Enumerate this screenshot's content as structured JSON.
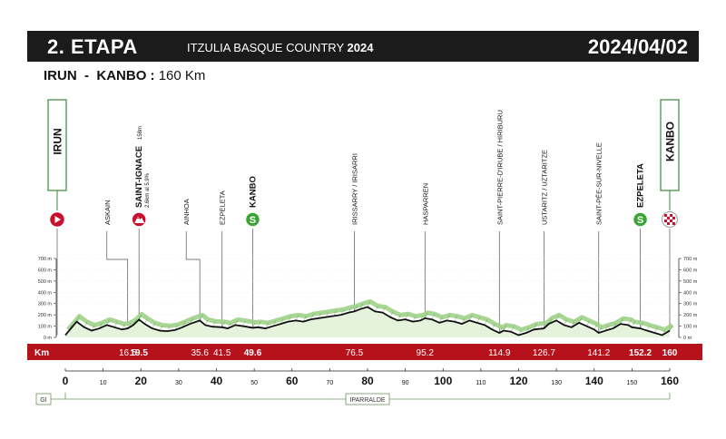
{
  "header": {
    "stage": "2. ETAPA",
    "race": "ITZULIA BASQUE COUNTRY",
    "year": "2024",
    "date": "2024/04/02"
  },
  "route": {
    "start": "IRUN",
    "separator": "-",
    "finish": "KANBO",
    "distance": "160 Km"
  },
  "endpoints": {
    "start": {
      "name": "IRUN",
      "km": 0,
      "icon": "start-play-icon"
    },
    "finish": {
      "name": "KANBO",
      "km": 160,
      "icon": "finish-checkered-icon"
    }
  },
  "waypoints": [
    {
      "km": 11,
      "name": "ASKAIN",
      "bold": false,
      "icon": null
    },
    {
      "km": 19.5,
      "name": "SAINT-IGNACE",
      "suffix": "158m",
      "sub": "2.6km al 5.9%",
      "bold": true,
      "icon": "climb-icon"
    },
    {
      "km": 32,
      "name": "AINHOA",
      "bold": false,
      "icon": null
    },
    {
      "km": 41.5,
      "name": "EZPELETA",
      "bold": false,
      "icon": null
    },
    {
      "km": 49.6,
      "name": "KANBO",
      "bold": true,
      "icon": "sprint-icon"
    },
    {
      "km": 76.5,
      "name": "IRISSARRY / IRISARRI",
      "bold": false,
      "icon": null
    },
    {
      "km": 95.2,
      "name": "HASPARREN",
      "bold": false,
      "icon": null
    },
    {
      "km": 114.9,
      "name": "SAINT-PIERRE-D'IRUBE / HIRIBURU",
      "bold": false,
      "icon": null
    },
    {
      "km": 126.7,
      "name": "USTARITZ / UZTARITZE",
      "bold": false,
      "icon": null
    },
    {
      "km": 141.2,
      "name": "SAINT-PÉE-SUR-NIVELLE",
      "bold": false,
      "icon": null
    },
    {
      "km": 152.2,
      "name": "EZPELETA",
      "bold": true,
      "icon": "sprint-icon"
    }
  ],
  "km_band": {
    "label": "Km",
    "marks": [
      {
        "km": 16.5,
        "text": "16.5",
        "bold": false
      },
      {
        "km": 19.5,
        "text": "19.5",
        "bold": true
      },
      {
        "km": 35.6,
        "text": "35.6",
        "bold": false
      },
      {
        "km": 41.5,
        "text": "41.5",
        "bold": false
      },
      {
        "km": 49.6,
        "text": "49.6",
        "bold": true
      },
      {
        "km": 76.5,
        "text": "76.5",
        "bold": false
      },
      {
        "km": 95.2,
        "text": "95.2",
        "bold": false
      },
      {
        "km": 114.9,
        "text": "114.9",
        "bold": false
      },
      {
        "km": 126.7,
        "text": "126.7",
        "bold": false
      },
      {
        "km": 141.2,
        "text": "141.2",
        "bold": false
      },
      {
        "km": 152.2,
        "text": "152.2",
        "bold": true
      },
      {
        "km": 160,
        "text": "160",
        "bold": true
      }
    ]
  },
  "regions": {
    "left_tag": "GI",
    "center_tag": "IPARRALDE"
  },
  "colors": {
    "header_bg": "#1b1b1b",
    "band_red": "#b5121b",
    "profile_green": "#9fd28a",
    "profile_fill": "#e6f3dc",
    "sprint_green": "#3aa535",
    "climb_red": "#c8102e",
    "line_green": "#3a8a3a"
  },
  "chart_data": {
    "type": "area",
    "title": "",
    "xlabel": "",
    "ylabel": "",
    "xlim": [
      0,
      160
    ],
    "ylim": [
      0,
      700
    ],
    "x_ticks": [
      0,
      10,
      20,
      30,
      40,
      50,
      60,
      70,
      80,
      90,
      100,
      110,
      120,
      130,
      140,
      150,
      160
    ],
    "x_tick_labels": [
      "0",
      "10",
      "20",
      "30",
      "40",
      "50",
      "60",
      "70",
      "80",
      "90",
      "100",
      "110",
      "120",
      "130",
      "140",
      "150",
      "160"
    ],
    "major_x_ticks": [
      0,
      20,
      40,
      60,
      80,
      100,
      120,
      140,
      160
    ],
    "y_ticks": [
      0,
      100,
      200,
      300,
      400,
      500,
      600,
      700
    ],
    "y_tick_labels": [
      "0 m",
      "100 m",
      "200 m",
      "300 m",
      "400 m",
      "500 m",
      "600 m",
      "700 m"
    ],
    "series": [
      {
        "x": [
          0,
          1,
          3,
          5,
          7,
          9,
          11,
          13,
          15,
          16.5,
          18,
          19.5,
          21,
          23,
          25,
          27,
          29,
          31,
          33,
          35.6,
          37,
          39,
          41.5,
          43,
          45,
          47,
          49.6,
          51,
          53,
          55,
          57,
          59,
          61,
          63,
          65,
          67,
          69,
          71,
          73,
          75,
          76.5,
          78,
          80,
          82,
          84,
          86,
          88,
          90,
          92,
          94,
          95.2,
          97,
          99,
          101,
          103,
          105,
          107,
          109,
          111,
          113,
          114.9,
          116,
          118,
          120,
          122,
          124,
          126.7,
          128,
          130,
          132,
          134,
          136,
          138,
          140,
          141.2,
          143,
          145,
          147,
          149,
          150,
          152.2,
          154,
          156,
          158,
          160
        ],
        "y": [
          20,
          60,
          140,
          90,
          60,
          80,
          110,
          90,
          70,
          80,
          110,
          158,
          120,
          80,
          60,
          55,
          65,
          90,
          120,
          150,
          110,
          95,
          90,
          80,
          110,
          100,
          85,
          90,
          80,
          100,
          120,
          140,
          150,
          140,
          160,
          170,
          180,
          190,
          200,
          220,
          230,
          250,
          270,
          230,
          220,
          180,
          150,
          160,
          140,
          150,
          170,
          160,
          130,
          150,
          140,
          120,
          150,
          130,
          110,
          70,
          40,
          60,
          50,
          20,
          40,
          70,
          80,
          120,
          150,
          110,
          90,
          130,
          100,
          70,
          40,
          60,
          80,
          120,
          110,
          90,
          80,
          60,
          40,
          20,
          60
        ]
      }
    ]
  }
}
